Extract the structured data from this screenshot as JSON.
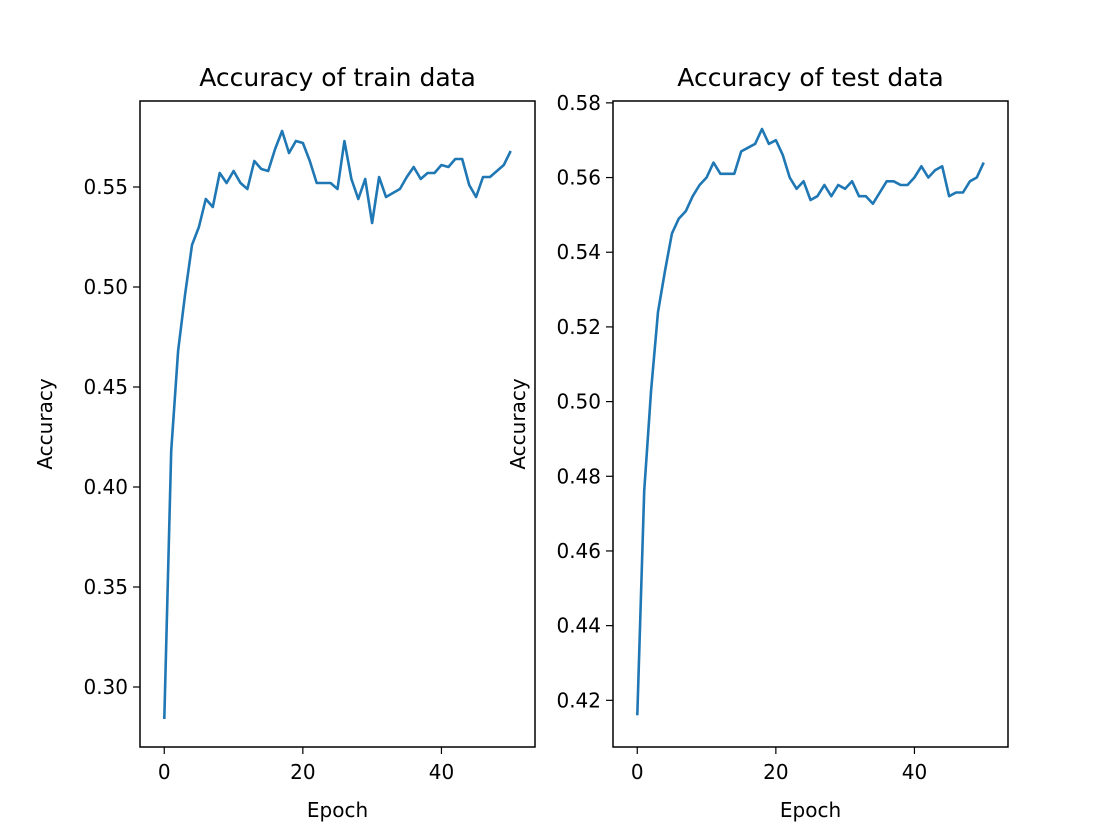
{
  "chart_data": [
    {
      "type": "line",
      "title": "Accuracy of train data",
      "xlabel": "Epoch",
      "ylabel": "Accuracy",
      "xlim": [
        -3.5,
        53.5
      ],
      "ylim": [
        0.27,
        0.593
      ],
      "xticks": [
        0,
        20,
        40
      ],
      "yticks": [
        0.3,
        0.35,
        0.4,
        0.45,
        0.5,
        0.55
      ],
      "ytick_decimals": 2,
      "grid": false,
      "color": "#1f77b4",
      "x": [
        0,
        1,
        2,
        3,
        4,
        5,
        6,
        7,
        8,
        9,
        10,
        11,
        12,
        13,
        14,
        15,
        16,
        17,
        18,
        19,
        20,
        21,
        22,
        23,
        24,
        25,
        26,
        27,
        28,
        29,
        30,
        31,
        32,
        33,
        34,
        35,
        36,
        37,
        38,
        39,
        40,
        41,
        42,
        43,
        44,
        45,
        46,
        47,
        48,
        49,
        50
      ],
      "values": [
        0.284,
        0.418,
        0.468,
        0.496,
        0.521,
        0.53,
        0.544,
        0.54,
        0.557,
        0.552,
        0.558,
        0.552,
        0.549,
        0.563,
        0.559,
        0.558,
        0.569,
        0.578,
        0.567,
        0.573,
        0.572,
        0.563,
        0.552,
        0.552,
        0.552,
        0.549,
        0.573,
        0.554,
        0.544,
        0.554,
        0.532,
        0.555,
        0.545,
        0.547,
        0.549,
        0.555,
        0.56,
        0.554,
        0.557,
        0.557,
        0.561,
        0.56,
        0.564,
        0.564,
        0.551,
        0.545,
        0.555,
        0.555,
        0.558,
        0.561,
        0.568
      ]
    },
    {
      "type": "line",
      "title": "Accuracy of test data",
      "xlabel": "Epoch",
      "ylabel": "Accuracy",
      "xlim": [
        -3.5,
        53.5
      ],
      "ylim": [
        0.4075,
        0.5805
      ],
      "xticks": [
        0,
        20,
        40
      ],
      "yticks": [
        0.42,
        0.44,
        0.46,
        0.48,
        0.5,
        0.52,
        0.54,
        0.56,
        0.58
      ],
      "ytick_decimals": 2,
      "grid": false,
      "color": "#1f77b4",
      "x": [
        0,
        1,
        2,
        3,
        4,
        5,
        6,
        7,
        8,
        9,
        10,
        11,
        12,
        13,
        14,
        15,
        16,
        17,
        18,
        19,
        20,
        21,
        22,
        23,
        24,
        25,
        26,
        27,
        28,
        29,
        30,
        31,
        32,
        33,
        34,
        35,
        36,
        37,
        38,
        39,
        40,
        41,
        42,
        43,
        44,
        45,
        46,
        47,
        48,
        49,
        50
      ],
      "values": [
        0.416,
        0.476,
        0.503,
        0.524,
        0.535,
        0.545,
        0.549,
        0.551,
        0.555,
        0.558,
        0.56,
        0.564,
        0.561,
        0.561,
        0.561,
        0.567,
        0.568,
        0.569,
        0.573,
        0.569,
        0.57,
        0.566,
        0.56,
        0.557,
        0.559,
        0.554,
        0.555,
        0.558,
        0.555,
        0.558,
        0.557,
        0.559,
        0.555,
        0.555,
        0.553,
        0.556,
        0.559,
        0.559,
        0.558,
        0.558,
        0.56,
        0.563,
        0.56,
        0.562,
        0.563,
        0.555,
        0.556,
        0.556,
        0.559,
        0.56,
        0.564
      ]
    }
  ]
}
